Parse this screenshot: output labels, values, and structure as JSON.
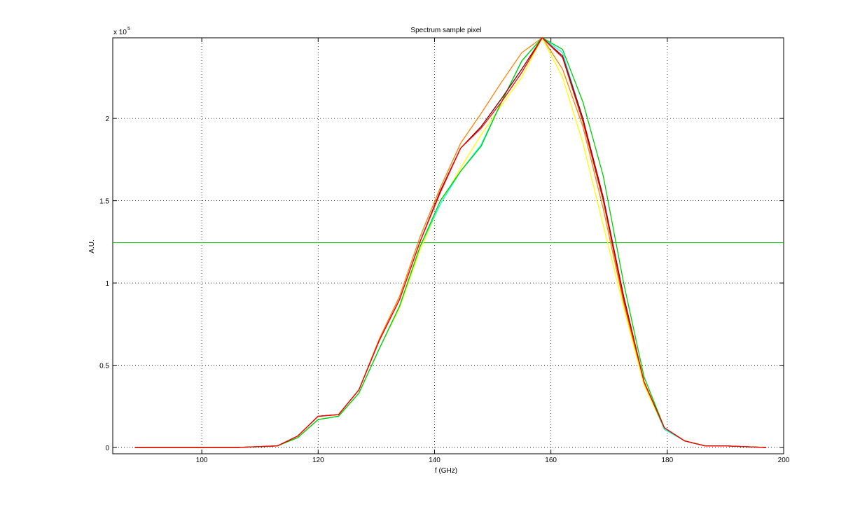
{
  "chart_data": {
    "type": "line",
    "title": "Spectrum sample pixel",
    "x_label": "f (GHz)",
    "y_label": "A.U.",
    "y_exponent": {
      "base": "x 10",
      "power": "5"
    },
    "x": [
      88.5,
      92,
      95.5,
      99,
      102.5,
      106,
      109.5,
      113,
      116.5,
      120,
      123.5,
      127,
      130.5,
      134,
      137.5,
      141,
      144.5,
      148,
      151.5,
      155,
      158.5,
      162,
      165.5,
      169,
      172.5,
      176,
      179.5,
      183,
      186.5,
      190,
      193.5,
      197
    ],
    "series": [
      {
        "color": "#ff8000",
        "values": [
          0,
          0,
          0,
          0,
          0,
          0,
          0.005,
          0.01,
          0.07,
          0.19,
          0.2,
          0.35,
          0.66,
          0.92,
          1.28,
          1.58,
          1.85,
          2.03,
          2.22,
          2.4,
          2.49,
          2.3,
          1.95,
          1.45,
          0.88,
          0.39,
          0.11,
          0.04,
          0.01,
          0.01,
          0.005,
          0
        ]
      },
      {
        "color": "#ffff00",
        "values": [
          0,
          0,
          0,
          0,
          0,
          0,
          0.005,
          0.01,
          0.06,
          0.17,
          0.19,
          0.33,
          0.6,
          0.85,
          1.2,
          1.48,
          1.7,
          1.9,
          2.08,
          2.25,
          2.49,
          2.25,
          1.85,
          1.35,
          0.85,
          0.38,
          0.11,
          0.04,
          0.01,
          0.01,
          0.005,
          0
        ]
      },
      {
        "color": "#00ffff",
        "values": [
          0,
          0,
          0,
          0,
          0,
          0,
          0.005,
          0.01,
          0.06,
          0.17,
          0.19,
          0.33,
          0.6,
          0.86,
          1.22,
          1.48,
          1.68,
          1.84,
          2.1,
          2.35,
          2.49,
          2.4,
          2.0,
          1.5,
          0.92,
          0.4,
          0.11,
          0.04,
          0.01,
          0.01,
          0.005,
          0
        ]
      },
      {
        "color": "#00cc00",
        "values": [
          0,
          0,
          0,
          0,
          0,
          0,
          0.005,
          0.01,
          0.06,
          0.17,
          0.19,
          0.33,
          0.6,
          0.86,
          1.22,
          1.5,
          1.68,
          1.83,
          2.1,
          2.35,
          2.49,
          2.42,
          2.1,
          1.65,
          1.0,
          0.43,
          0.12,
          0.04,
          0.01,
          0.01,
          0.005,
          0
        ]
      },
      {
        "color": "#800000",
        "values": [
          0,
          0,
          0,
          0,
          0,
          0,
          0.005,
          0.01,
          0.07,
          0.19,
          0.2,
          0.35,
          0.65,
          0.9,
          1.25,
          1.56,
          1.82,
          1.95,
          2.12,
          2.3,
          2.49,
          2.38,
          2.0,
          1.52,
          0.92,
          0.4,
          0.12,
          0.04,
          0.01,
          0.01,
          0.005,
          0
        ]
      },
      {
        "color": "#ff0000",
        "values": [
          0,
          0,
          0,
          0,
          0,
          0,
          0.005,
          0.01,
          0.07,
          0.19,
          0.2,
          0.35,
          0.65,
          0.9,
          1.25,
          1.55,
          1.82,
          1.94,
          2.1,
          2.28,
          2.49,
          2.37,
          1.98,
          1.5,
          0.9,
          0.4,
          0.12,
          0.04,
          0.01,
          0.01,
          0.005,
          0
        ]
      }
    ],
    "hline": {
      "value": 1.245,
      "color": "#00cc00"
    },
    "xlim": [
      84.7,
      200
    ],
    "ylim": [
      -0.038,
      2.49
    ],
    "xticks": [
      100,
      120,
      140,
      160,
      180,
      200
    ],
    "yticks": [
      0,
      0.5,
      1,
      1.5,
      2
    ],
    "grid": true
  }
}
